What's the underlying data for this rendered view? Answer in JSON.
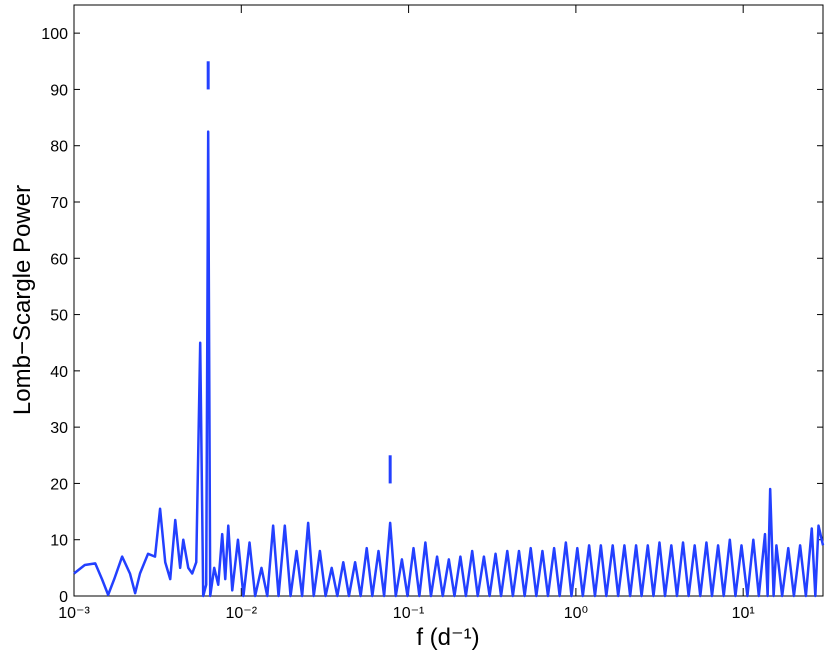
{
  "chart_data": {
    "type": "line",
    "log_x": true,
    "xlabel": "f (d⁻¹)",
    "ylabel": "Lomb−Scargle Power",
    "xlim": [
      0.001,
      30
    ],
    "ylim": [
      0,
      105
    ],
    "xticks": [
      {
        "value": 0.001,
        "label": "10⁻³"
      },
      {
        "value": 0.01,
        "label": "10⁻²"
      },
      {
        "value": 0.1,
        "label": "10⁻¹"
      },
      {
        "value": 1,
        "label": "10⁰"
      },
      {
        "value": 10,
        "label": "10¹"
      }
    ],
    "yticks": [
      0,
      10,
      20,
      30,
      40,
      50,
      60,
      70,
      80,
      90,
      100
    ],
    "series": [
      {
        "color": "#2340ff",
        "x": [
          0.001,
          0.00116,
          0.00134,
          0.00147,
          0.0016,
          0.00174,
          0.00194,
          0.00216,
          0.00232,
          0.00248,
          0.00277,
          0.00305,
          0.00327,
          0.00351,
          0.00376,
          0.00403,
          0.00431,
          0.0045,
          0.00482,
          0.00509,
          0.00538,
          0.00568,
          0.00592,
          0.00617,
          0.00634,
          0.00652,
          0.00689,
          0.00728,
          0.00769,
          0.00802,
          0.00836,
          0.00883,
          0.00955,
          0.0103,
          0.0112,
          0.0121,
          0.0132,
          0.0143,
          0.0155,
          0.0167,
          0.0182,
          0.0197,
          0.0214,
          0.0231,
          0.0251,
          0.0271,
          0.0295,
          0.0319,
          0.0347,
          0.0375,
          0.0407,
          0.044,
          0.0479,
          0.0517,
          0.0562,
          0.0607,
          0.0661,
          0.0714,
          0.0776,
          0.0838,
          0.0912,
          0.0985,
          0.107,
          0.116,
          0.126,
          0.136,
          0.148,
          0.16,
          0.174,
          0.188,
          0.204,
          0.22,
          0.24,
          0.259,
          0.282,
          0.305,
          0.331,
          0.357,
          0.389,
          0.42,
          0.457,
          0.494,
          0.537,
          0.58,
          0.631,
          0.681,
          0.741,
          0.8,
          0.871,
          0.941,
          1.02,
          1.1,
          1.2,
          1.3,
          1.41,
          1.52,
          1.66,
          1.79,
          1.95,
          2.11,
          2.29,
          2.47,
          2.69,
          2.91,
          3.16,
          3.41,
          3.72,
          4.02,
          4.37,
          4.72,
          5.13,
          5.54,
          6.03,
          6.51,
          7.08,
          7.65,
          8.32,
          8.99,
          9.77,
          10.6,
          11.5,
          12.4,
          13.5,
          14.0,
          14.5,
          15.2,
          15.8,
          17.1,
          18.6,
          20.1,
          21.9,
          23.7,
          25.7,
          27.0,
          28.2,
          30
        ],
        "values": [
          4,
          5.5,
          5.8,
          3,
          0.2,
          3,
          7,
          4,
          0.5,
          4,
          7.5,
          7,
          15.5,
          6,
          3,
          13.5,
          5,
          10,
          5,
          4,
          6,
          45,
          0,
          2,
          82.5,
          0,
          5,
          2,
          11,
          3,
          12.5,
          1,
          10,
          0,
          9.5,
          0,
          5,
          0,
          12.5,
          0,
          12.5,
          0,
          8,
          0,
          13,
          0,
          8,
          0,
          5,
          0,
          6,
          0,
          6,
          0,
          8.5,
          0,
          8,
          0,
          13,
          0,
          6.5,
          0,
          8.5,
          0,
          9.5,
          0,
          7,
          0,
          6.5,
          0,
          7,
          0,
          8,
          0,
          7,
          0,
          7.5,
          0,
          8,
          0,
          8,
          0,
          8.5,
          0,
          8,
          0,
          8.5,
          0,
          9.5,
          0,
          8.5,
          0,
          9,
          0,
          9,
          0,
          9,
          0,
          9,
          0,
          9,
          0,
          9,
          0,
          9.5,
          0,
          9,
          0,
          9.5,
          0,
          9,
          0,
          9.5,
          0,
          9,
          0,
          10,
          0,
          9,
          0,
          10,
          0,
          11,
          0,
          19,
          0,
          9,
          0,
          8.5,
          0,
          9,
          0,
          12,
          0,
          12.5,
          9
        ]
      }
    ],
    "peak_markers": [
      {
        "x": 0.00634,
        "ymin": 90,
        "ymax": 95
      },
      {
        "x": 0.0776,
        "ymin": 20,
        "ymax": 25
      }
    ]
  }
}
